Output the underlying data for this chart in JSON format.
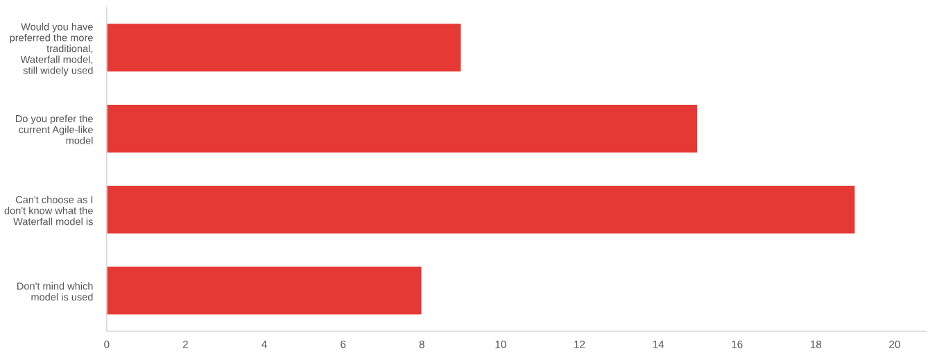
{
  "chart_data": {
    "type": "bar",
    "orientation": "horizontal",
    "categories": [
      "Would you have\npreferred the more\ntraditional,\nWaterfall model,\nstill widely used",
      "Do you prefer the\ncurrent Agile-like\nmodel",
      "Can't choose as I\ndon't know what the\nWaterfall model is",
      "Don't mind which\nmodel is used"
    ],
    "values": [
      9,
      15,
      19,
      8
    ],
    "color": "#e53935",
    "xlim": [
      0,
      20.8
    ],
    "xticks": [
      0,
      2,
      4,
      6,
      8,
      10,
      12,
      14,
      16,
      18,
      20
    ],
    "grid": false,
    "legend": false
  }
}
